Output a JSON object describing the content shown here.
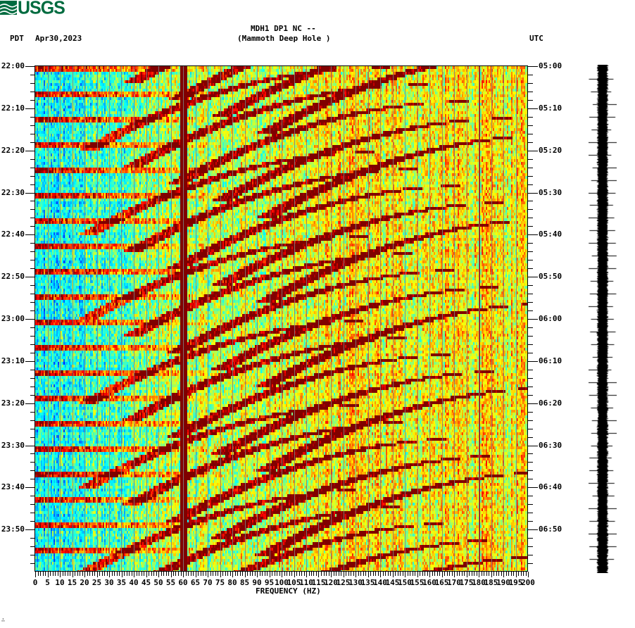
{
  "header": {
    "logo_text": "USGS",
    "station_line": "MDH1 DP1 NC --",
    "station_name": "(Mammoth Deep Hole )",
    "left_timezone": "PDT",
    "date": "Apr30,2023",
    "right_timezone": "UTC"
  },
  "footer_mark": "∴",
  "chart_data": {
    "type": "heatmap",
    "title": "MDH1 DP1 NC -- (Mammoth Deep Hole )",
    "subtitle": "Apr30,2023",
    "xlabel": "FREQUENCY (HZ)",
    "ylabel_left": "PDT",
    "ylabel_right": "UTC",
    "xlim": [
      0,
      200
    ],
    "x_tick_step": 5,
    "x_minor_tick_step": 1,
    "x_ticks": [
      "0",
      "5",
      "10",
      "15",
      "20",
      "25",
      "30",
      "35",
      "40",
      "45",
      "50",
      "55",
      "60",
      "65",
      "70",
      "75",
      "80",
      "85",
      "90",
      "95",
      "100",
      "105",
      "110",
      "115",
      "120",
      "125",
      "130",
      "135",
      "140",
      "145",
      "150",
      "155",
      "160",
      "165",
      "170",
      "175",
      "180",
      "185",
      "190",
      "195",
      "200"
    ],
    "y_ticks_left": [
      "22:00",
      "22:10",
      "22:20",
      "22:30",
      "22:40",
      "22:50",
      "23:00",
      "23:10",
      "23:20",
      "23:30",
      "23:40",
      "23:50"
    ],
    "y_ticks_right": [
      "05:00",
      "05:10",
      "05:20",
      "05:30",
      "05:40",
      "05:50",
      "06:00",
      "06:10",
      "06:20",
      "06:30",
      "06:40",
      "06:50"
    ],
    "time_span_minutes": 120,
    "minor_tick_minutes": 2,
    "colormap": [
      "#0000ff",
      "#00a0ff",
      "#00ffff",
      "#80ff80",
      "#ffff00",
      "#ff8000",
      "#ff0000",
      "#800000"
    ],
    "features": {
      "constant_line_hz": 60,
      "secondary_line_hz": 180,
      "low_freq_energy": "low (blue/cyan) below ~40 Hz",
      "high_freq_energy": "moderate (yellow/orange) above ~120 Hz",
      "pulse_period_minutes": 6,
      "sweep_cycle_minutes": 20,
      "sweeps": "repeating curved high-amplitude tracks rising from ~20 Hz toward ~130 Hz within each 20-minute cycle"
    },
    "grid": "vertical gray lines every 5 Hz",
    "legend": "none"
  },
  "seismogram": {
    "color": "#000000",
    "label": "waveform trace"
  }
}
